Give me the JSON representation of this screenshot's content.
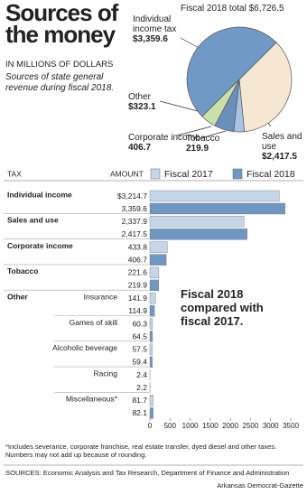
{
  "header": {
    "title": "Sources of the money",
    "units": "IN MILLIONS OF DOLLARS",
    "description": "Sources of state general revenue during fiscal 2018."
  },
  "chart_data": [
    {
      "type": "pie",
      "title": "Fiscal 2018 total $6,726.5",
      "categories": [
        "Sales and use",
        "Tobacco",
        "Corporate income",
        "Other",
        "Individual income tax"
      ],
      "values": [
        2417.5,
        219.9,
        406.7,
        323.1,
        3359.6
      ],
      "value_labels": [
        "$2,417.5",
        "219.9",
        "406.7",
        "$323.1",
        "$3,359.6"
      ],
      "colors": [
        "#f6e7d2",
        "#a9c4e2",
        "#6a8fba",
        "#c9e0a9",
        "#7099c6"
      ]
    },
    {
      "type": "hbar",
      "category_header": "TAX",
      "value_header": "AMOUNT",
      "categories": [
        "Individual income",
        "Sales and use",
        "Corporate income",
        "Tobacco",
        "Insurance",
        "Games of skill",
        "Alcoholic beverage",
        "Racing",
        "Miscellaneous*"
      ],
      "group_label": "Other",
      "series": [
        {
          "name": "Fiscal 2017",
          "color": "#c6d6e9",
          "values": [
            3214.7,
            2337.9,
            433.8,
            221.6,
            141.9,
            60.3,
            57.5,
            2.4,
            81.7
          ],
          "value_labels": [
            "$3,214.7",
            "2,337.9",
            "433.8",
            "221.6",
            "141.9",
            "60.3",
            "57.5",
            "2.4",
            "81.7"
          ]
        },
        {
          "name": "Fiscal 2018",
          "color": "#6f97c4",
          "values": [
            3359.6,
            2417.5,
            406.7,
            219.9,
            114.9,
            64.5,
            59.4,
            2.2,
            82.1
          ],
          "value_labels": [
            "3,359.6",
            "2,417.5",
            "406.7",
            "219.9",
            "114.9",
            "64.5",
            "59.4",
            "2.2",
            "82.1"
          ]
        }
      ],
      "xlim": [
        0,
        3500
      ],
      "xticks": [
        0,
        500,
        1000,
        1500,
        2000,
        2500,
        3000,
        3500
      ],
      "grid": false,
      "annotation": "Fiscal 2018 compared with fiscal 2017."
    }
  ],
  "footnote": "*Includes severance, corporate franchise, real estate transfer, dyed diesel and other taxes. Numbers may not add up because of rounding.",
  "sources": "SOURCES: Economic Analysis and Tax Research, Department of Finance and Administration",
  "credit": "Arkansas Democrat-Gazette"
}
